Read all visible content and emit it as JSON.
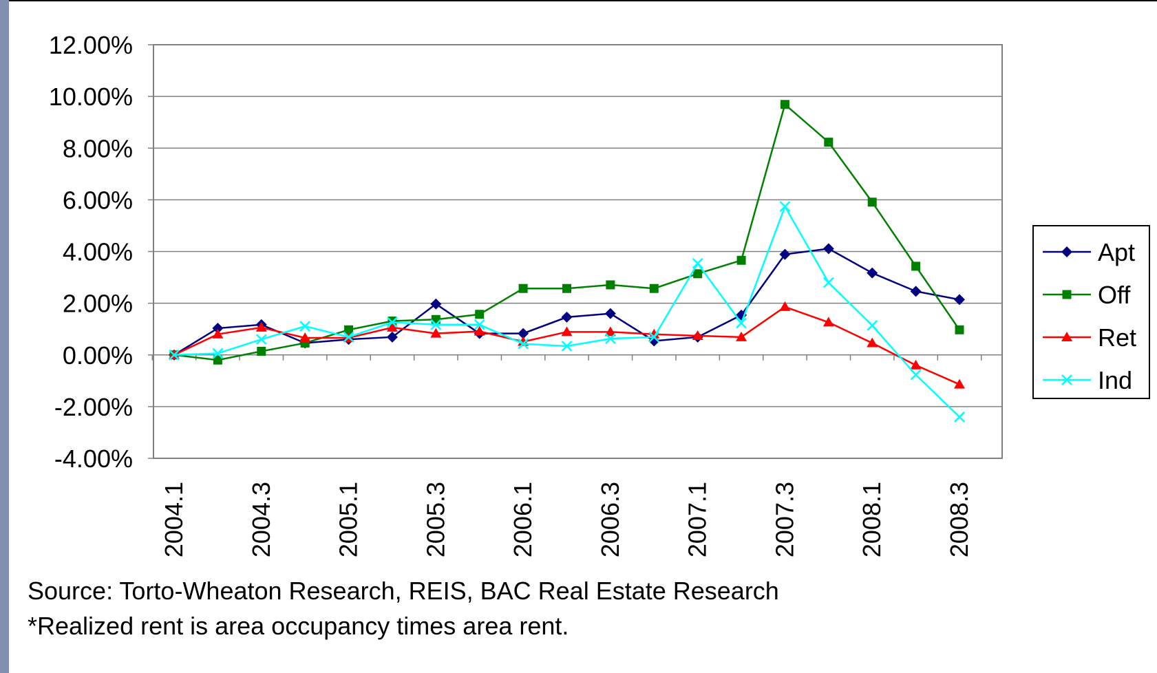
{
  "chart_data": {
    "type": "line",
    "categories": [
      "2004.1",
      null,
      "2004.3",
      null,
      "2005.1",
      null,
      "2005.3",
      null,
      "2006.1",
      null,
      "2006.3",
      null,
      "2007.1",
      null,
      "2007.3",
      null,
      "2008.1",
      null,
      "2008.3"
    ],
    "series": [
      {
        "name": "Apt",
        "color": "#000080",
        "marker": "diamond",
        "values": [
          0,
          1.03,
          1.17,
          0.46,
          0.6,
          0.69,
          1.97,
          0.83,
          0.83,
          1.46,
          1.6,
          0.54,
          0.69,
          1.54,
          3.89,
          4.11,
          3.17,
          2.46,
          2.14
        ]
      },
      {
        "name": "Off",
        "color": "#008000",
        "marker": "square",
        "values": [
          0,
          -0.2,
          0.14,
          0.46,
          0.97,
          1.31,
          1.37,
          1.57,
          2.57,
          2.57,
          2.71,
          2.57,
          3.14,
          3.66,
          9.69,
          8.23,
          5.91,
          3.43,
          0.97
        ]
      },
      {
        "name": "Ret",
        "color": "#ff0000",
        "marker": "triangle",
        "values": [
          0,
          0.8,
          1.06,
          0.66,
          0.66,
          1.06,
          0.83,
          0.91,
          0.51,
          0.89,
          0.89,
          0.8,
          0.74,
          0.69,
          1.86,
          1.26,
          0.46,
          -0.4,
          -1.14
        ]
      },
      {
        "name": "Ind",
        "color": "#00ffff",
        "marker": "x",
        "values": [
          0,
          0.06,
          0.6,
          1.11,
          0.69,
          1.26,
          1.17,
          1.17,
          0.43,
          0.34,
          0.63,
          0.69,
          3.54,
          1.23,
          5.74,
          2.8,
          1.14,
          -0.77,
          -2.4
        ]
      }
    ],
    "ylim": [
      -4,
      12
    ],
    "yticks": [
      {
        "value": -4,
        "label": "-4.00%"
      },
      {
        "value": -2,
        "label": "-2.00%"
      },
      {
        "value": 0,
        "label": "0.00%"
      },
      {
        "value": 2,
        "label": "2.00%"
      },
      {
        "value": 4,
        "label": "4.00%"
      },
      {
        "value": 6,
        "label": "6.00%"
      },
      {
        "value": 8,
        "label": "8.00%"
      },
      {
        "value": 10,
        "label": "10.00%"
      },
      {
        "value": 12,
        "label": "12.00%"
      }
    ],
    "grid": true,
    "legend": "right",
    "annotations": [
      "Source: Torto-Wheaton Research, REIS, BAC Real Estate Research",
      "*Realized rent is area occupancy times area rent."
    ]
  }
}
